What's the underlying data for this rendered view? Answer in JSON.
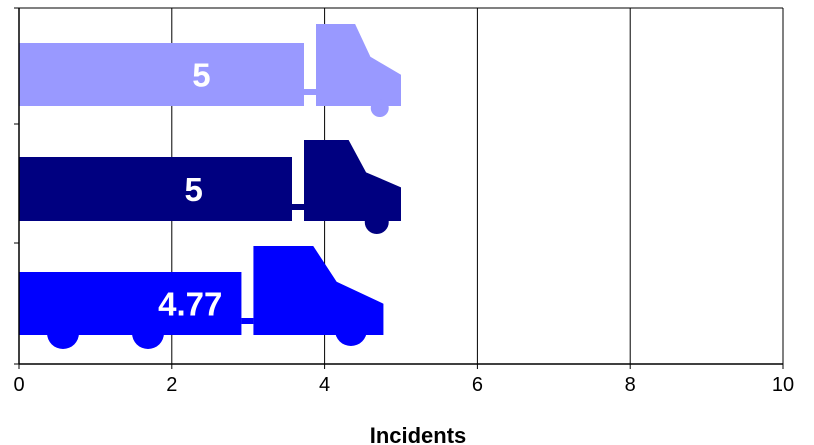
{
  "chart_data": {
    "type": "bar",
    "orientation": "horizontal",
    "xlabel": "Incidents",
    "xlim": [
      0,
      10
    ],
    "xticks": [
      "0",
      "2",
      "4",
      "6",
      "8",
      "10"
    ],
    "grid": true,
    "legend": "none",
    "series": [
      {
        "value": 5,
        "label": "5",
        "color": "#9999ff",
        "icon": "truck-icon"
      },
      {
        "value": 5,
        "label": "5",
        "color": "#000080",
        "icon": "truck-icon"
      },
      {
        "value": 4.77,
        "label": "4.77",
        "color": "#0000ff",
        "icon": "truck-with-trailer-icon"
      }
    ]
  }
}
